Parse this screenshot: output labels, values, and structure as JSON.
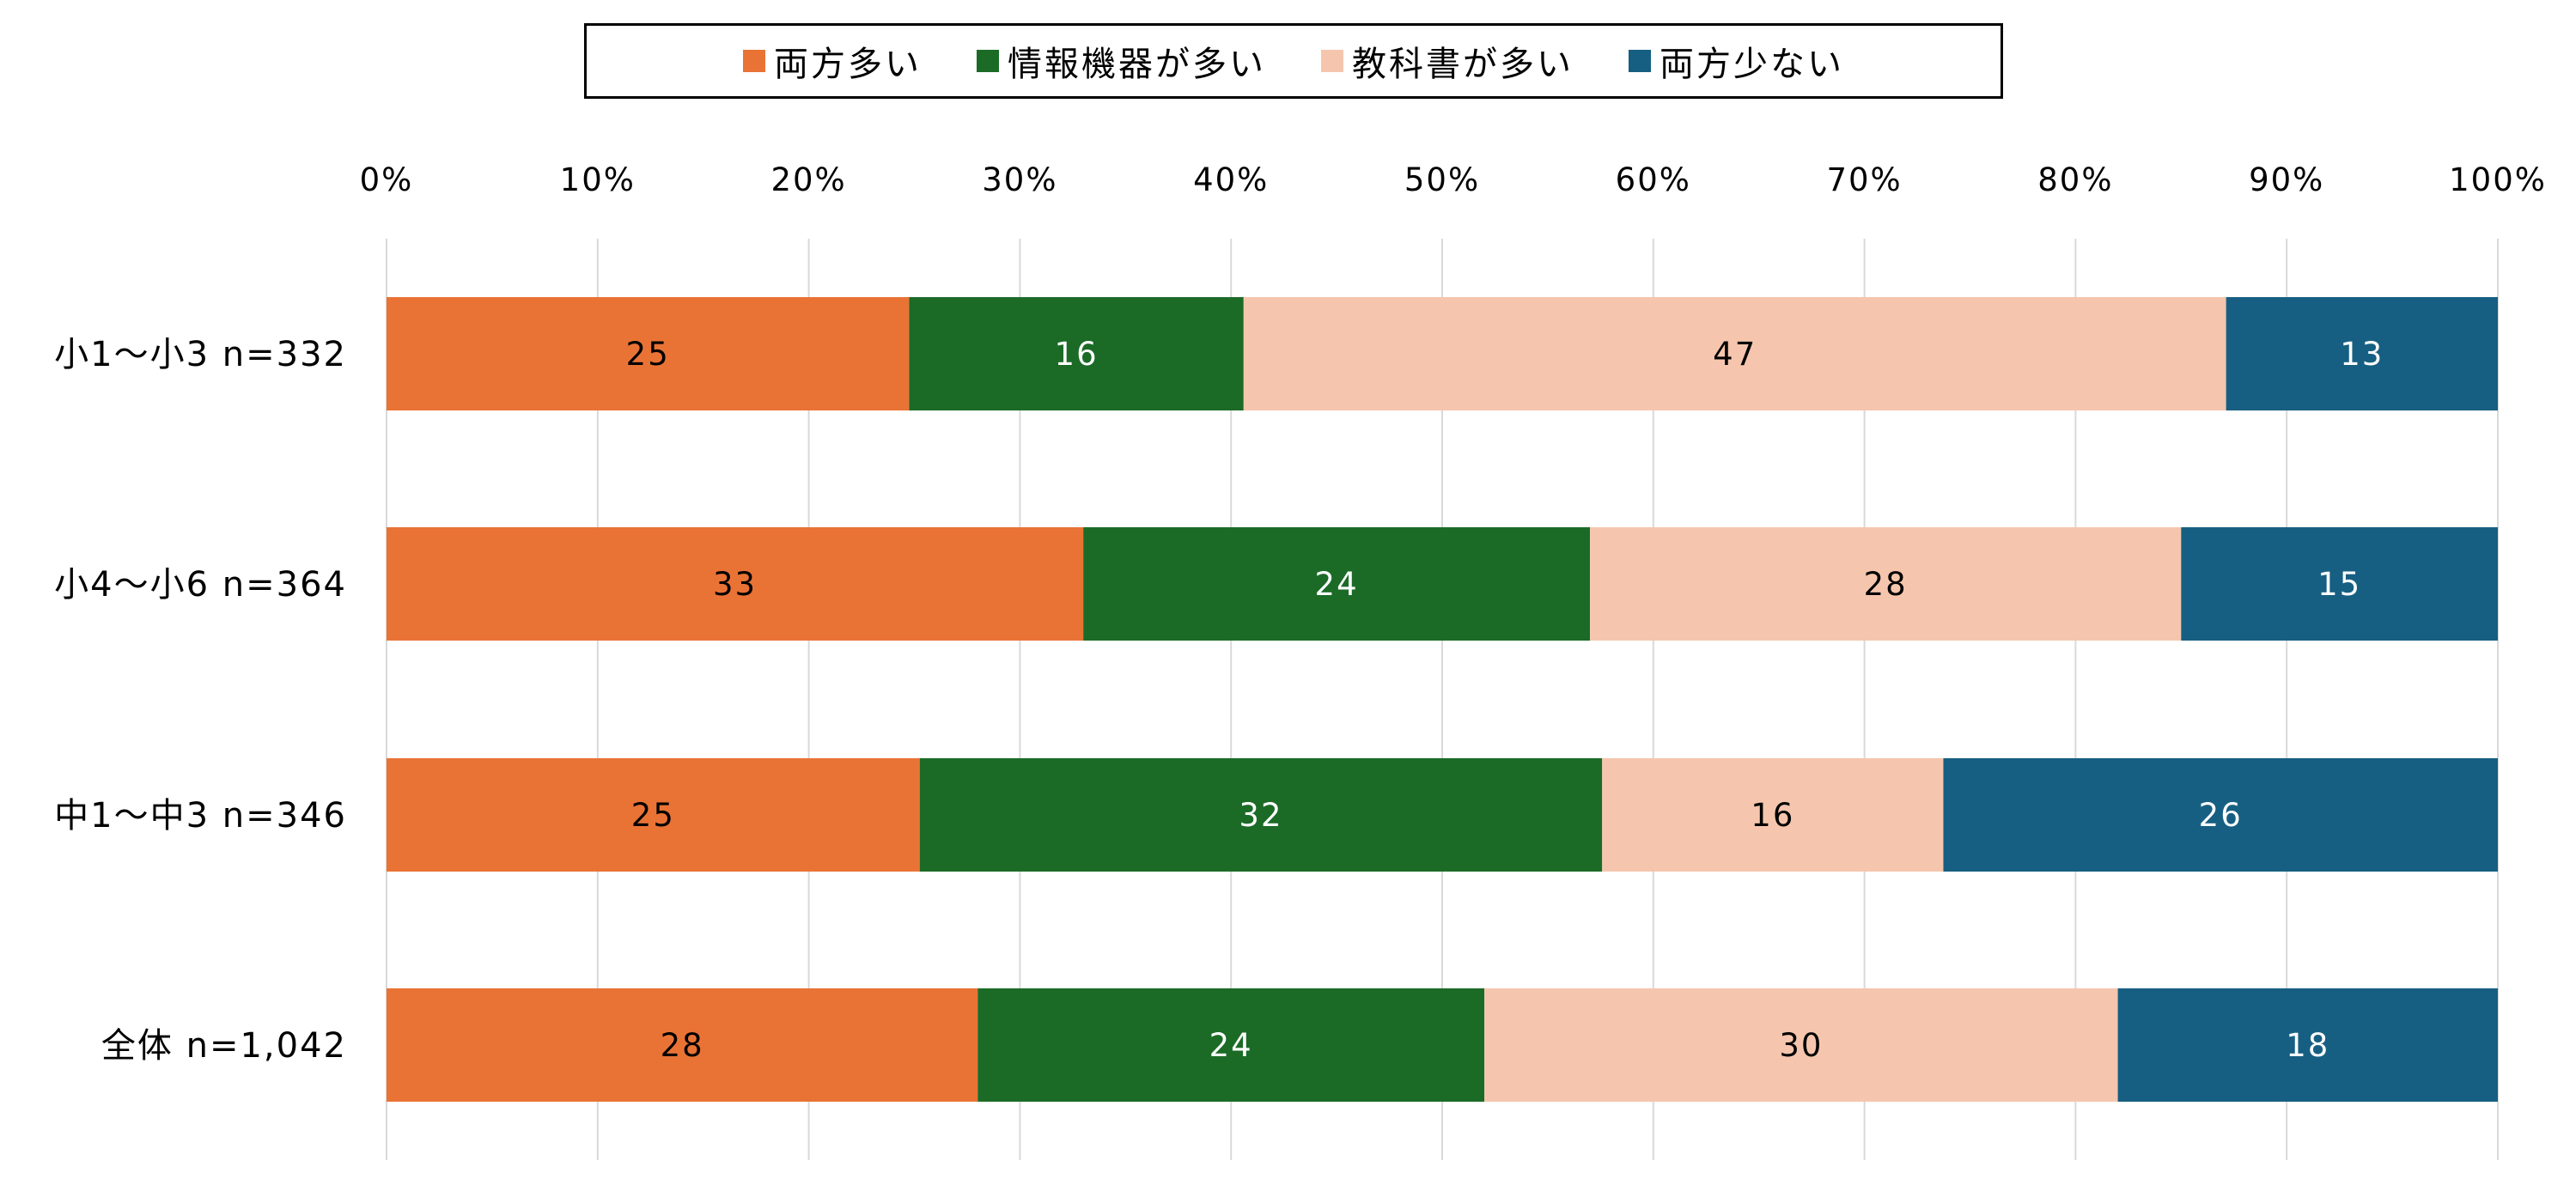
{
  "chart_data": {
    "type": "bar",
    "orientation": "horizontal",
    "stacked": "percent",
    "title": "",
    "xlabel": "",
    "ylabel": "",
    "xlim": [
      0,
      100
    ],
    "x_ticks": [
      "0%",
      "10%",
      "20%",
      "30%",
      "40%",
      "50%",
      "60%",
      "70%",
      "80%",
      "90%",
      "100%"
    ],
    "grid": true,
    "legend_position": "top",
    "categories": [
      "小1〜小3 n=332",
      "小4〜小6 n=364",
      "中1〜中3 n=346",
      "全体 n=1,042"
    ],
    "series": [
      {
        "name": "両方多い",
        "color": "#E97335",
        "label_color": "#000000",
        "values": [
          25,
          33,
          25,
          28
        ]
      },
      {
        "name": "情報機器が多い",
        "color": "#1B6B27",
        "label_color": "#FFFFFF",
        "values": [
          16,
          24,
          32,
          24
        ]
      },
      {
        "name": "教科書が多い",
        "color": "#F5C6AD",
        "label_color": "#000000",
        "values": [
          47,
          28,
          16,
          30
        ]
      },
      {
        "name": "両方少ない",
        "color": "#175F82",
        "label_color": "#FFFFFF",
        "values": [
          13,
          15,
          26,
          18
        ]
      }
    ]
  }
}
